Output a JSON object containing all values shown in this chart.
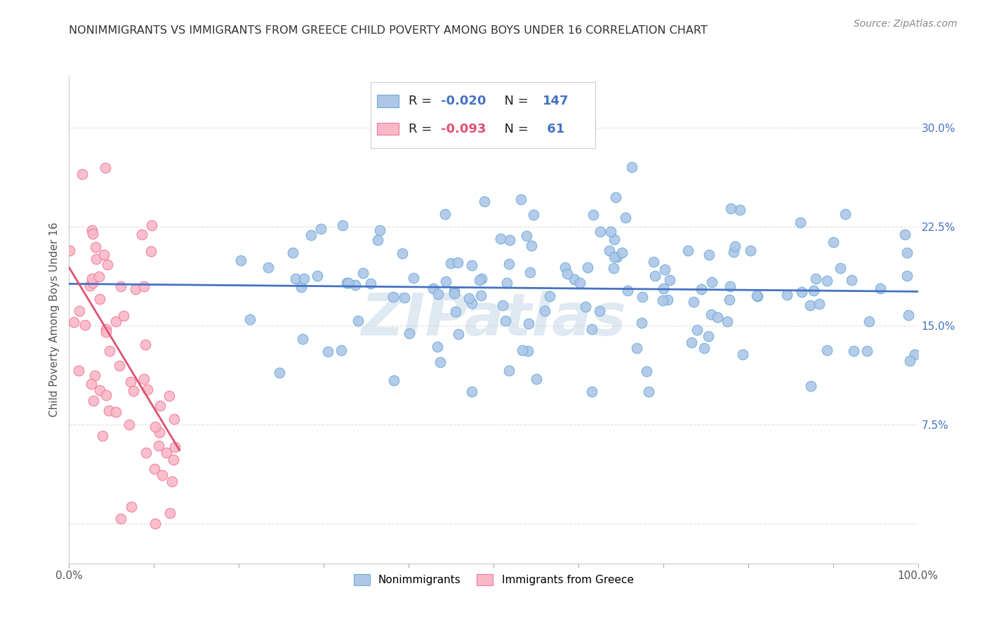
{
  "title": "NONIMMIGRANTS VS IMMIGRANTS FROM GREECE CHILD POVERTY AMONG BOYS UNDER 16 CORRELATION CHART",
  "source": "Source: ZipAtlas.com",
  "ylabel": "Child Poverty Among Boys Under 16",
  "xlim": [
    0,
    100
  ],
  "ylim": [
    -3,
    34
  ],
  "nonimm_color": "#aec6e8",
  "nonimm_edge": "#6aaed6",
  "imm_color": "#f9b8c8",
  "imm_edge": "#f07898",
  "trendline_nonimm": "#4472c4",
  "trendline_imm": "#e05070",
  "watermark": "ZIPatlas",
  "watermark_color": "#c8d8e8",
  "background": "#ffffff",
  "grid_color": "#e0e0e0",
  "ytick_color": "#4472c4",
  "title_color": "#333333",
  "source_color": "#888888",
  "legend_edge_color": "#cccccc",
  "seed": 123
}
